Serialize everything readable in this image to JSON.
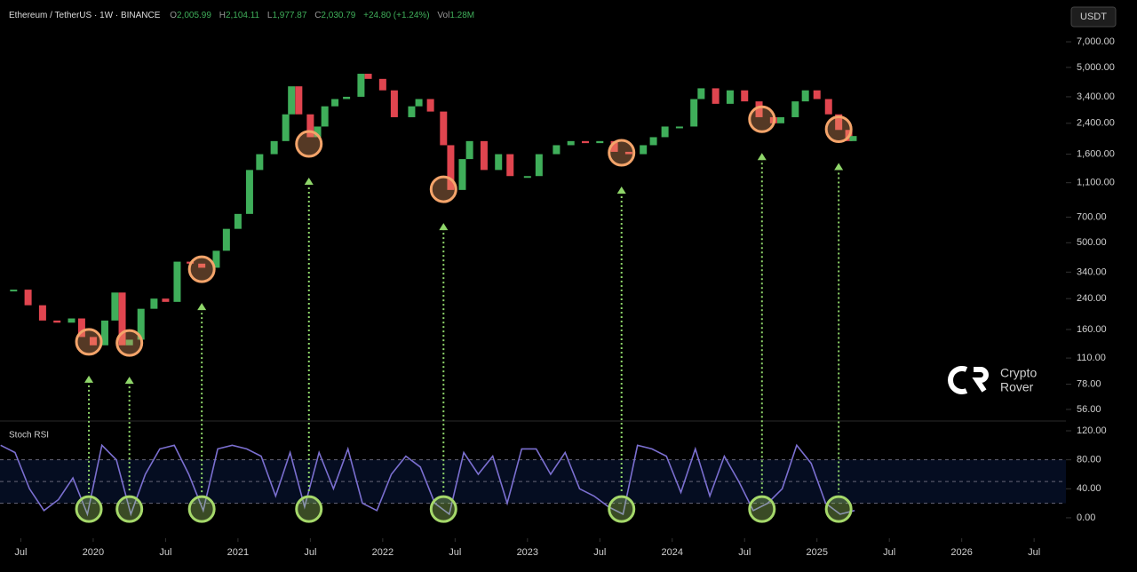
{
  "header": {
    "symbol": "Ethereum / TetherUS · 1W · BINANCE",
    "o_label": "O",
    "open": "2,005.99",
    "h_label": "H",
    "high": "2,104.11",
    "l_label": "L",
    "low": "1,977.87",
    "c_label": "C",
    "close": "2,030.79",
    "change": "+24.80 (+1.24%)",
    "vol_label": "Vol",
    "volume": "1.28M"
  },
  "currency": "USDT",
  "watermark": [
    "Crypto",
    "Rover"
  ],
  "chart_data": [
    {
      "type": "candle",
      "log_scale": true,
      "up_color": "#3fae5a",
      "down_color": "#e0454f",
      "x": [
        2019.45,
        2019.55,
        2019.65,
        2019.75,
        2019.85,
        2019.92,
        2020.0,
        2020.08,
        2020.15,
        2020.2,
        2020.25,
        2020.33,
        2020.42,
        2020.5,
        2020.58,
        2020.67,
        2020.75,
        2020.85,
        2020.92,
        2021.0,
        2021.08,
        2021.15,
        2021.25,
        2021.33,
        2021.37,
        2021.42,
        2021.5,
        2021.55,
        2021.6,
        2021.67,
        2021.75,
        2021.85,
        2021.9,
        2022.0,
        2022.08,
        2022.2,
        2022.25,
        2022.33,
        2022.42,
        2022.47,
        2022.55,
        2022.6,
        2022.7,
        2022.8,
        2022.88,
        2023.0,
        2023.08,
        2023.2,
        2023.3,
        2023.4,
        2023.5,
        2023.6,
        2023.7,
        2023.8,
        2023.87,
        2023.95,
        2024.05,
        2024.15,
        2024.2,
        2024.3,
        2024.4,
        2024.5,
        2024.6,
        2024.7,
        2024.75,
        2024.85,
        2024.92,
        2025.0,
        2025.08,
        2025.15,
        2025.22,
        2025.25
      ],
      "values": [
        270,
        220,
        180,
        175,
        185,
        145,
        130,
        180,
        260,
        130,
        140,
        210,
        240,
        230,
        390,
        380,
        360,
        450,
        600,
        730,
        1300,
        1600,
        1900,
        2700,
        3900,
        2700,
        2000,
        2300,
        3000,
        3300,
        3400,
        4600,
        4300,
        3700,
        2600,
        3000,
        3300,
        2800,
        1800,
        1000,
        1500,
        1900,
        1300,
        1600,
        1200,
        1200,
        1600,
        1800,
        1900,
        1850,
        1900,
        1650,
        1600,
        1800,
        2000,
        2300,
        2300,
        3300,
        3800,
        3100,
        3700,
        3200,
        2600,
        2400,
        2600,
        3200,
        3700,
        3300,
        2700,
        2200,
        1900,
        2030
      ],
      "xlim": [
        2019.356,
        2026.72
      ],
      "ylim": [
        50.4,
        8540
      ],
      "yticks": [
        {
          "value": 7000,
          "label": "7,000.00"
        },
        {
          "value": 5000,
          "label": "5,000.00"
        },
        {
          "value": 3400,
          "label": "3,400.00"
        },
        {
          "value": 2400,
          "label": "2,400.00"
        },
        {
          "value": 1600,
          "label": "1,600.00"
        },
        {
          "value": 1100,
          "label": "1,100.00"
        },
        {
          "value": 700,
          "label": "700.00"
        },
        {
          "value": 500,
          "label": "500.00"
        },
        {
          "value": 340,
          "label": "340.00"
        },
        {
          "value": 240,
          "label": "240.00"
        },
        {
          "value": 160,
          "label": "160.00"
        },
        {
          "value": 110,
          "label": "110.00"
        },
        {
          "value": 78,
          "label": "78.00"
        },
        {
          "value": 56,
          "label": "56.00"
        }
      ],
      "highlight_color": "#f4a46a",
      "highlights_x": [
        2019.97,
        2020.25,
        2020.75,
        2021.49,
        2022.42,
        2023.65,
        2024.62,
        2025.15
      ],
      "highlights_values": [
        136,
        134,
        353,
        1830,
        1009,
        1630,
        2530,
        2220
      ]
    },
    {
      "type": "line",
      "title": "Stoch RSI",
      "color": "#7b6fd0",
      "x": [
        2019.36,
        2019.46,
        2019.56,
        2019.66,
        2019.76,
        2019.86,
        2019.96,
        2020.06,
        2020.16,
        2020.26,
        2020.36,
        2020.46,
        2020.56,
        2020.66,
        2020.76,
        2020.86,
        2020.96,
        2021.06,
        2021.16,
        2021.26,
        2021.36,
        2021.46,
        2021.56,
        2021.66,
        2021.76,
        2021.86,
        2021.96,
        2022.06,
        2022.16,
        2022.26,
        2022.36,
        2022.46,
        2022.56,
        2022.66,
        2022.76,
        2022.86,
        2022.96,
        2023.06,
        2023.16,
        2023.26,
        2023.36,
        2023.46,
        2023.56,
        2023.66,
        2023.76,
        2023.86,
        2023.96,
        2024.06,
        2024.16,
        2024.26,
        2024.36,
        2024.46,
        2024.56,
        2024.66,
        2024.76,
        2024.86,
        2024.96,
        2025.06,
        2025.16,
        2025.26
      ],
      "values": [
        100,
        90,
        40,
        10,
        25,
        55,
        5,
        100,
        80,
        5,
        60,
        95,
        100,
        60,
        10,
        95,
        100,
        95,
        85,
        30,
        90,
        15,
        90,
        40,
        95,
        20,
        10,
        60,
        85,
        70,
        20,
        5,
        90,
        60,
        85,
        20,
        95,
        95,
        60,
        90,
        40,
        30,
        15,
        5,
        100,
        95,
        85,
        35,
        95,
        30,
        85,
        50,
        10,
        20,
        40,
        100,
        75,
        20,
        5,
        10
      ],
      "band": [
        20,
        80
      ],
      "midline": 50,
      "xlim": [
        2019.356,
        2026.72
      ],
      "ylim": [
        -20.9,
        128.6
      ],
      "yticks": [
        {
          "value": 120,
          "label": "120.00"
        },
        {
          "value": 80,
          "label": "80.00"
        },
        {
          "value": 40,
          "label": "40.00"
        },
        {
          "value": 0,
          "label": "0.00"
        }
      ],
      "xticks": [
        {
          "value": 2019.5,
          "label": "Jul"
        },
        {
          "value": 2020,
          "label": "2020"
        },
        {
          "value": 2020.5,
          "label": "Jul"
        },
        {
          "value": 2021,
          "label": "2021"
        },
        {
          "value": 2021.5,
          "label": "Jul"
        },
        {
          "value": 2022,
          "label": "2022"
        },
        {
          "value": 2022.5,
          "label": "Jul"
        },
        {
          "value": 2023,
          "label": "2023"
        },
        {
          "value": 2023.5,
          "label": "Jul"
        },
        {
          "value": 2024,
          "label": "2024"
        },
        {
          "value": 2024.5,
          "label": "Jul"
        },
        {
          "value": 2025,
          "label": "2025"
        },
        {
          "value": 2025.5,
          "label": "Jul"
        },
        {
          "value": 2026,
          "label": "2026"
        },
        {
          "value": 2026.5,
          "label": "Jul"
        }
      ],
      "highlight_color": "#a5d86a",
      "highlights_x": [
        2019.97,
        2020.25,
        2020.75,
        2021.49,
        2022.42,
        2023.65,
        2024.62,
        2025.15
      ],
      "highlights_values": [
        12,
        12,
        12,
        12,
        12,
        12,
        12,
        12
      ]
    }
  ]
}
